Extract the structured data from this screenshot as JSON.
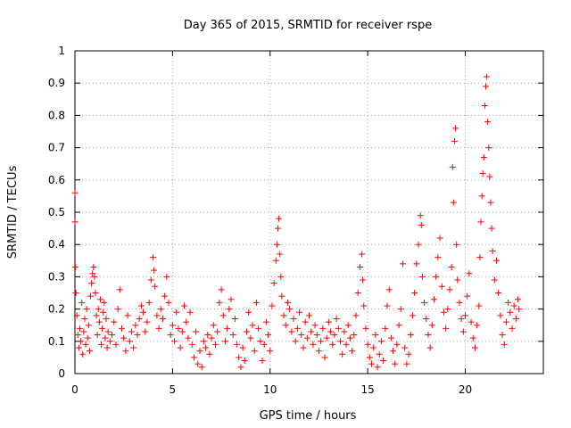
{
  "chart_data": {
    "type": "scatter",
    "title": "Day 365 of 2015, SRMTID for receiver rspe",
    "xlabel": "GPS time / hours",
    "ylabel": "SRMTID / TECUs",
    "xlim": [
      0,
      24
    ],
    "ylim": [
      0,
      1
    ],
    "x_ticks": [
      "0",
      "5",
      "10",
      "15",
      "20"
    ],
    "x_tick_values": [
      0,
      5,
      10,
      15,
      20
    ],
    "y_ticks": [
      "0",
      "0.1",
      "0.2",
      "0.3",
      "0.4",
      "0.5",
      "0.6",
      "0.7",
      "0.8",
      "0.9",
      "1"
    ],
    "y_tick_values": [
      0,
      0.1,
      0.2,
      0.3,
      0.4,
      0.5,
      0.6,
      0.7,
      0.8,
      0.9,
      1.0
    ],
    "grid": true,
    "marker": "+",
    "color": "#ff0000",
    "series": [
      {
        "name": "SRMTID",
        "points": [
          [
            0.0,
            0.56
          ],
          [
            0.0,
            0.47
          ],
          [
            0.02,
            0.33
          ],
          [
            0.05,
            0.25
          ],
          [
            0.1,
            0.18
          ],
          [
            0.15,
            0.12
          ],
          [
            0.2,
            0.08
          ],
          [
            0.25,
            0.14
          ],
          [
            0.3,
            0.1
          ],
          [
            0.35,
            0.22
          ],
          [
            0.4,
            0.06
          ],
          [
            0.45,
            0.13
          ],
          [
            0.5,
            0.17
          ],
          [
            0.55,
            0.09
          ],
          [
            0.6,
            0.2
          ],
          [
            0.65,
            0.11
          ],
          [
            0.7,
            0.15
          ],
          [
            0.75,
            0.07
          ],
          [
            0.8,
            0.24
          ],
          [
            0.85,
            0.28
          ],
          [
            0.9,
            0.31
          ],
          [
            0.95,
            0.33
          ],
          [
            1.0,
            0.3
          ],
          [
            1.05,
            0.25
          ],
          [
            1.1,
            0.18
          ],
          [
            1.15,
            0.12
          ],
          [
            1.2,
            0.2
          ],
          [
            1.25,
            0.16
          ],
          [
            1.3,
            0.23
          ],
          [
            1.35,
            0.09
          ],
          [
            1.4,
            0.14
          ],
          [
            1.45,
            0.19
          ],
          [
            1.5,
            0.22
          ],
          [
            1.55,
            0.11
          ],
          [
            1.6,
            0.17
          ],
          [
            1.65,
            0.08
          ],
          [
            1.7,
            0.13
          ],
          [
            1.8,
            0.1
          ],
          [
            1.9,
            0.12
          ],
          [
            2.0,
            0.16
          ],
          [
            2.1,
            0.09
          ],
          [
            2.2,
            0.2
          ],
          [
            2.3,
            0.26
          ],
          [
            2.4,
            0.14
          ],
          [
            2.5,
            0.11
          ],
          [
            2.6,
            0.07
          ],
          [
            2.7,
            0.18
          ],
          [
            2.8,
            0.1
          ],
          [
            2.9,
            0.13
          ],
          [
            3.0,
            0.08
          ],
          [
            3.1,
            0.15
          ],
          [
            3.2,
            0.12
          ],
          [
            3.3,
            0.17
          ],
          [
            3.4,
            0.21
          ],
          [
            3.5,
            0.19
          ],
          [
            3.6,
            0.13
          ],
          [
            3.7,
            0.16
          ],
          [
            3.8,
            0.22
          ],
          [
            3.9,
            0.29
          ],
          [
            4.0,
            0.36
          ],
          [
            4.05,
            0.32
          ],
          [
            4.1,
            0.27
          ],
          [
            4.2,
            0.18
          ],
          [
            4.3,
            0.14
          ],
          [
            4.4,
            0.2
          ],
          [
            4.5,
            0.17
          ],
          [
            4.6,
            0.24
          ],
          [
            4.7,
            0.3
          ],
          [
            4.8,
            0.22
          ],
          [
            4.9,
            0.12
          ],
          [
            5.0,
            0.15
          ],
          [
            5.1,
            0.1
          ],
          [
            5.2,
            0.19
          ],
          [
            5.3,
            0.14
          ],
          [
            5.4,
            0.08
          ],
          [
            5.5,
            0.13
          ],
          [
            5.6,
            0.21
          ],
          [
            5.7,
            0.16
          ],
          [
            5.8,
            0.11
          ],
          [
            5.9,
            0.19
          ],
          [
            6.0,
            0.09
          ],
          [
            6.1,
            0.05
          ],
          [
            6.2,
            0.13
          ],
          [
            6.3,
            0.03
          ],
          [
            6.4,
            0.07
          ],
          [
            6.5,
            0.02
          ],
          [
            6.6,
            0.1
          ],
          [
            6.7,
            0.08
          ],
          [
            6.8,
            0.12
          ],
          [
            6.9,
            0.06
          ],
          [
            7.0,
            0.11
          ],
          [
            7.1,
            0.15
          ],
          [
            7.2,
            0.09
          ],
          [
            7.3,
            0.13
          ],
          [
            7.4,
            0.22
          ],
          [
            7.5,
            0.26
          ],
          [
            7.6,
            0.18
          ],
          [
            7.7,
            0.1
          ],
          [
            7.8,
            0.14
          ],
          [
            7.9,
            0.2
          ],
          [
            8.0,
            0.23
          ],
          [
            8.1,
            0.12
          ],
          [
            8.2,
            0.17
          ],
          [
            8.3,
            0.09
          ],
          [
            8.4,
            0.05
          ],
          [
            8.5,
            0.02
          ],
          [
            8.6,
            0.08
          ],
          [
            8.7,
            0.04
          ],
          [
            8.8,
            0.13
          ],
          [
            8.9,
            0.19
          ],
          [
            9.0,
            0.11
          ],
          [
            9.1,
            0.15
          ],
          [
            9.2,
            0.07
          ],
          [
            9.3,
            0.22
          ],
          [
            9.4,
            0.14
          ],
          [
            9.5,
            0.1
          ],
          [
            9.6,
            0.04
          ],
          [
            9.7,
            0.09
          ],
          [
            9.8,
            0.16
          ],
          [
            9.9,
            0.12
          ],
          [
            10.0,
            0.07
          ],
          [
            10.1,
            0.21
          ],
          [
            10.2,
            0.28
          ],
          [
            10.3,
            0.35
          ],
          [
            10.35,
            0.4
          ],
          [
            10.4,
            0.45
          ],
          [
            10.45,
            0.48
          ],
          [
            10.5,
            0.37
          ],
          [
            10.55,
            0.3
          ],
          [
            10.6,
            0.24
          ],
          [
            10.7,
            0.18
          ],
          [
            10.8,
            0.15
          ],
          [
            10.9,
            0.22
          ],
          [
            11.0,
            0.2
          ],
          [
            11.1,
            0.13
          ],
          [
            11.2,
            0.17
          ],
          [
            11.3,
            0.1
          ],
          [
            11.4,
            0.14
          ],
          [
            11.5,
            0.19
          ],
          [
            11.6,
            0.12
          ],
          [
            11.7,
            0.08
          ],
          [
            11.8,
            0.16
          ],
          [
            11.9,
            0.11
          ],
          [
            12.0,
            0.18
          ],
          [
            12.1,
            0.13
          ],
          [
            12.2,
            0.09
          ],
          [
            12.3,
            0.15
          ],
          [
            12.4,
            0.12
          ],
          [
            12.5,
            0.07
          ],
          [
            12.6,
            0.1
          ],
          [
            12.7,
            0.14
          ],
          [
            12.8,
            0.05
          ],
          [
            12.9,
            0.11
          ],
          [
            13.0,
            0.16
          ],
          [
            13.1,
            0.13
          ],
          [
            13.2,
            0.09
          ],
          [
            13.3,
            0.12
          ],
          [
            13.4,
            0.17
          ],
          [
            13.5,
            0.14
          ],
          [
            13.6,
            0.1
          ],
          [
            13.7,
            0.06
          ],
          [
            13.8,
            0.13
          ],
          [
            13.9,
            0.09
          ],
          [
            14.0,
            0.15
          ],
          [
            14.1,
            0.11
          ],
          [
            14.2,
            0.07
          ],
          [
            14.3,
            0.12
          ],
          [
            14.4,
            0.18
          ],
          [
            14.5,
            0.25
          ],
          [
            14.6,
            0.33
          ],
          [
            14.7,
            0.37
          ],
          [
            14.75,
            0.29
          ],
          [
            14.8,
            0.21
          ],
          [
            14.9,
            0.14
          ],
          [
            15.0,
            0.09
          ],
          [
            15.1,
            0.05
          ],
          [
            15.2,
            0.03
          ],
          [
            15.3,
            0.08
          ],
          [
            15.4,
            0.12
          ],
          [
            15.5,
            0.02
          ],
          [
            15.6,
            0.06
          ],
          [
            15.7,
            0.1
          ],
          [
            15.8,
            0.04
          ],
          [
            15.9,
            0.14
          ],
          [
            16.0,
            0.21
          ],
          [
            16.1,
            0.26
          ],
          [
            16.2,
            0.11
          ],
          [
            16.3,
            0.07
          ],
          [
            16.4,
            0.03
          ],
          [
            16.5,
            0.09
          ],
          [
            16.6,
            0.15
          ],
          [
            16.7,
            0.2
          ],
          [
            16.8,
            0.34
          ],
          [
            16.9,
            0.08
          ],
          [
            17.0,
            0.03
          ],
          [
            17.1,
            0.06
          ],
          [
            17.2,
            0.12
          ],
          [
            17.3,
            0.18
          ],
          [
            17.4,
            0.25
          ],
          [
            17.5,
            0.34
          ],
          [
            17.6,
            0.4
          ],
          [
            17.7,
            0.49
          ],
          [
            17.75,
            0.46
          ],
          [
            17.8,
            0.3
          ],
          [
            17.9,
            0.22
          ],
          [
            18.0,
            0.17
          ],
          [
            18.1,
            0.12
          ],
          [
            18.2,
            0.08
          ],
          [
            18.3,
            0.15
          ],
          [
            18.4,
            0.23
          ],
          [
            18.5,
            0.3
          ],
          [
            18.6,
            0.36
          ],
          [
            18.7,
            0.42
          ],
          [
            18.8,
            0.27
          ],
          [
            18.9,
            0.19
          ],
          [
            19.0,
            0.14
          ],
          [
            19.1,
            0.2
          ],
          [
            19.2,
            0.26
          ],
          [
            19.3,
            0.33
          ],
          [
            19.35,
            0.64
          ],
          [
            19.4,
            0.53
          ],
          [
            19.45,
            0.72
          ],
          [
            19.5,
            0.76
          ],
          [
            19.55,
            0.4
          ],
          [
            19.6,
            0.29
          ],
          [
            19.7,
            0.22
          ],
          [
            19.8,
            0.17
          ],
          [
            19.9,
            0.13
          ],
          [
            20.0,
            0.18
          ],
          [
            20.1,
            0.24
          ],
          [
            20.2,
            0.31
          ],
          [
            20.3,
            0.16
          ],
          [
            20.4,
            0.11
          ],
          [
            20.5,
            0.08
          ],
          [
            20.6,
            0.15
          ],
          [
            20.7,
            0.21
          ],
          [
            20.75,
            0.36
          ],
          [
            20.8,
            0.47
          ],
          [
            20.85,
            0.55
          ],
          [
            20.9,
            0.62
          ],
          [
            20.95,
            0.67
          ],
          [
            21.0,
            0.83
          ],
          [
            21.05,
            0.89
          ],
          [
            21.1,
            0.92
          ],
          [
            21.15,
            0.78
          ],
          [
            21.2,
            0.7
          ],
          [
            21.25,
            0.61
          ],
          [
            21.3,
            0.53
          ],
          [
            21.35,
            0.45
          ],
          [
            21.4,
            0.38
          ],
          [
            21.5,
            0.29
          ],
          [
            21.6,
            0.35
          ],
          [
            21.7,
            0.25
          ],
          [
            21.8,
            0.18
          ],
          [
            21.9,
            0.12
          ],
          [
            22.0,
            0.09
          ],
          [
            22.1,
            0.16
          ],
          [
            22.2,
            0.22
          ],
          [
            22.3,
            0.19
          ],
          [
            22.4,
            0.14
          ],
          [
            22.5,
            0.21
          ],
          [
            22.6,
            0.17
          ],
          [
            22.7,
            0.23
          ],
          [
            22.75,
            0.2
          ]
        ]
      }
    ]
  }
}
